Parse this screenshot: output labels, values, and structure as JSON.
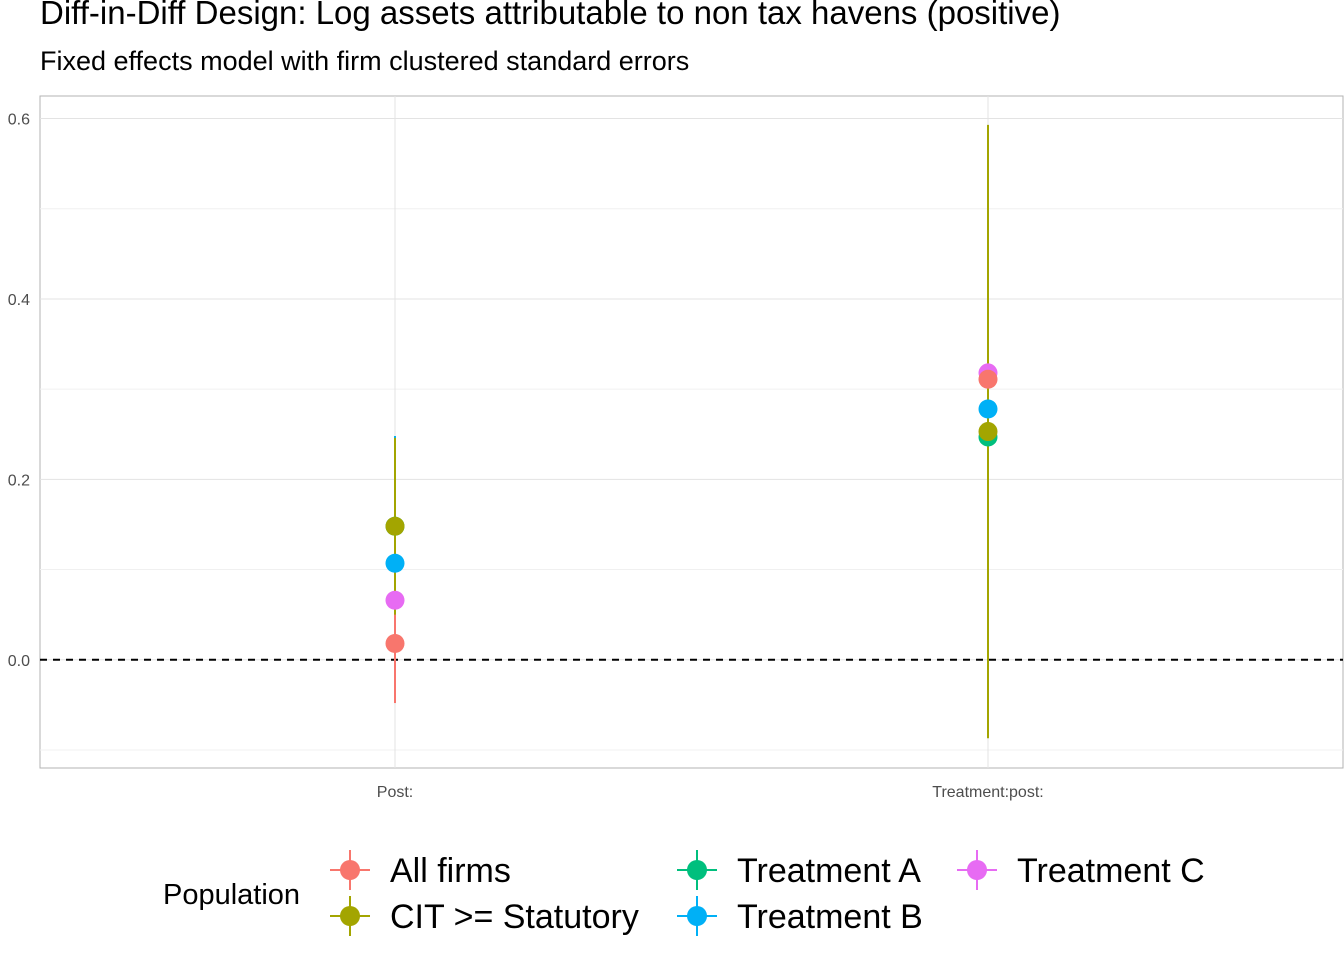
{
  "chart_data": {
    "type": "scatter",
    "title": "Diff-in-Diff Design: Log assets attributable to non tax havens (positive)",
    "subtitle": "Fixed effects model with firm clustered standard errors",
    "xlabel": "",
    "ylabel": "",
    "categories": [
      "Post:",
      "Treatment:post:"
    ],
    "y_ticks": [
      "0.0",
      "0.2",
      "0.4",
      "0.6"
    ],
    "ylim": [
      -0.1,
      0.63
    ],
    "grid": true,
    "reference_line": 0,
    "legend": {
      "title": "Population",
      "placement": "bottom"
    },
    "series": [
      {
        "name": "All firms",
        "color": "#F8766D",
        "points": [
          {
            "x": "Post:",
            "y": 0.018,
            "lo": -0.048,
            "hi": 0.085
          },
          {
            "x": "Treatment:post:",
            "y": 0.311,
            "lo": 0.12,
            "hi": 0.5
          }
        ]
      },
      {
        "name": "CIT >= Statutory",
        "color": "#A3A500",
        "points": [
          {
            "x": "Post:",
            "y": 0.148,
            "lo": 0.05,
            "hi": 0.246
          },
          {
            "x": "Treatment:post:",
            "y": 0.253,
            "lo": -0.087,
            "hi": 0.593
          }
        ]
      },
      {
        "name": "Treatment A",
        "color": "#00BF7D",
        "points": [
          {
            "x": "Post:",
            "y": 0.148,
            "lo": 0.05,
            "hi": 0.246
          },
          {
            "x": "Treatment:post:",
            "y": 0.247,
            "lo": -0.05,
            "hi": 0.54
          }
        ]
      },
      {
        "name": "Treatment B",
        "color": "#00B0F6",
        "points": [
          {
            "x": "Post:",
            "y": 0.107,
            "lo": 0.0,
            "hi": 0.248
          },
          {
            "x": "Treatment:post:",
            "y": 0.278,
            "lo": 0.05,
            "hi": 0.5
          }
        ]
      },
      {
        "name": "Treatment C",
        "color": "#E76BF3",
        "points": [
          {
            "x": "Post:",
            "y": 0.066,
            "lo": -0.048,
            "hi": 0.18
          },
          {
            "x": "Treatment:post:",
            "y": 0.318,
            "lo": 0.1,
            "hi": 0.53
          }
        ]
      }
    ],
    "draw_order": [
      "Treatment C",
      "Treatment A",
      "Treatment B",
      "All firms",
      "CIT >= Statutory"
    ]
  }
}
